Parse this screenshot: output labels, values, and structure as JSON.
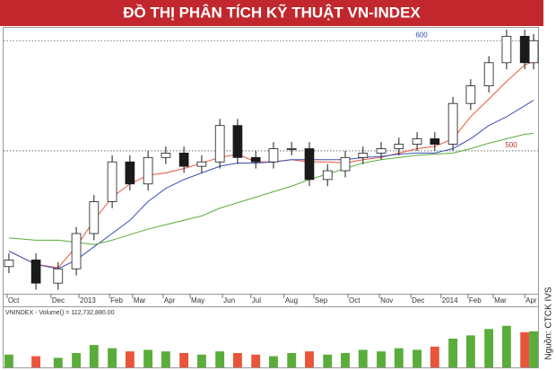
{
  "chart_data": {
    "type": "candlestick",
    "title": "ĐỒ THỊ PHÂN TÍCH KỸ THUẬT VN-INDEX",
    "source": "Nguồn: CTCK IVS",
    "x": [
      1.0,
      7.1,
      12.1,
      16.2,
      20.2,
      24.3,
      28.3,
      32.4,
      36.4,
      40.5,
      44.5,
      48.6,
      52.6,
      56.7,
      60.7,
      64.8,
      68.8,
      72.9,
      76.9,
      80.9,
      85.0,
      89.0,
      93.1,
      97.1,
      101.2,
      105.2,
      109.3,
      113.3,
      117.4,
      119.4
    ],
    "open": [
      395,
      401,
      380,
      393,
      425,
      454,
      490,
      470,
      494,
      498,
      486,
      490,
      523,
      494,
      490,
      502,
      502,
      474,
      482,
      494,
      498,
      502,
      506,
      511,
      506,
      543,
      559,
      580,
      604,
      580
    ],
    "high": [
      407,
      407,
      399,
      431,
      460,
      496,
      496,
      500,
      504,
      504,
      496,
      529,
      529,
      500,
      508,
      508,
      508,
      488,
      500,
      504,
      508,
      512,
      517,
      517,
      549,
      565,
      586,
      610,
      610,
      606
    ],
    "low": [
      389,
      374,
      374,
      387,
      419,
      448,
      464,
      464,
      488,
      480,
      480,
      484,
      488,
      484,
      484,
      496,
      468,
      468,
      476,
      488,
      492,
      496,
      500,
      500,
      500,
      537,
      553,
      574,
      574,
      574
    ],
    "close": [
      401,
      380,
      393,
      425,
      454,
      490,
      470,
      494,
      498,
      486,
      490,
      523,
      494,
      490,
      502,
      502,
      474,
      482,
      494,
      498,
      502,
      506,
      511,
      506,
      543,
      559,
      580,
      604,
      580,
      600
    ],
    "up_color": "#1a1a1a",
    "down_color": "#1a1a1a",
    "series": [
      {
        "color": "#e8553a",
        "values": [
          409,
          397,
          394,
          413,
          437,
          458,
          470,
          478,
          480,
          484,
          489,
          494,
          497,
          490,
          490,
          492,
          490,
          490,
          489,
          492,
          494,
          498,
          502,
          504,
          511,
          531,
          547,
          563,
          578,
          581
        ]
      },
      {
        "color": "#3b4fb8",
        "values": [
          409,
          397,
          393,
          401,
          413,
          425,
          437,
          454,
          466,
          474,
          480,
          486,
          489,
          489,
          490,
          492,
          492,
          492,
          492,
          494,
          495,
          497,
          498,
          498,
          502,
          511,
          523,
          531,
          541,
          546
        ]
      },
      {
        "color": "#5aad3a",
        "values": [
          421,
          419,
          419,
          417,
          415,
          419,
          424,
          429,
          433,
          437,
          441,
          448,
          453,
          458,
          463,
          468,
          474,
          479,
          484,
          489,
          492,
          494,
          496,
          497,
          498,
          502,
          507,
          511,
          515,
          516
        ]
      }
    ],
    "xlim": [
      0,
      120
    ],
    "ylim": [
      372,
      610
    ],
    "yticks": [
      500,
      600
    ],
    "xticks": [
      {
        "value": 0.6,
        "label": "Oct"
      },
      {
        "value": 10.5,
        "label": "Dec"
      },
      {
        "value": 16.8,
        "label": "2013"
      },
      {
        "value": 23.7,
        "label": "Feb"
      },
      {
        "value": 28.9,
        "label": "Mar"
      },
      {
        "value": 35.8,
        "label": "Apr"
      },
      {
        "value": 41.9,
        "label": "May"
      },
      {
        "value": 49.2,
        "label": "Jun"
      },
      {
        "value": 55.6,
        "label": "Jul"
      },
      {
        "value": 63.1,
        "label": "Aug"
      },
      {
        "value": 69.8,
        "label": "Sep"
      },
      {
        "value": 77.5,
        "label": "Oct"
      },
      {
        "value": 84.6,
        "label": "Nov"
      },
      {
        "value": 91.7,
        "label": "Dec"
      },
      {
        "value": 98.5,
        "label": "2014"
      },
      {
        "value": 104.6,
        "label": "Feb"
      },
      {
        "value": 110.3,
        "label": "Mar"
      },
      {
        "value": 117.4,
        "label": "Apr"
      }
    ],
    "volume": {
      "label": "VNINDEX - Volume() = 112,732,880.00",
      "values": [
        40000000,
        35000000,
        30000000,
        45000000,
        70000000,
        60000000,
        50000000,
        55000000,
        50000000,
        45000000,
        40000000,
        50000000,
        45000000,
        40000000,
        35000000,
        45000000,
        50000000,
        40000000,
        45000000,
        55000000,
        50000000,
        60000000,
        55000000,
        65000000,
        90000000,
        100000000,
        120000000,
        130000000,
        110000000,
        112732880
      ],
      "vlim": [
        0,
        160000000
      ],
      "up_color": "#5aad3a",
      "down_color": "#e8553a"
    }
  }
}
